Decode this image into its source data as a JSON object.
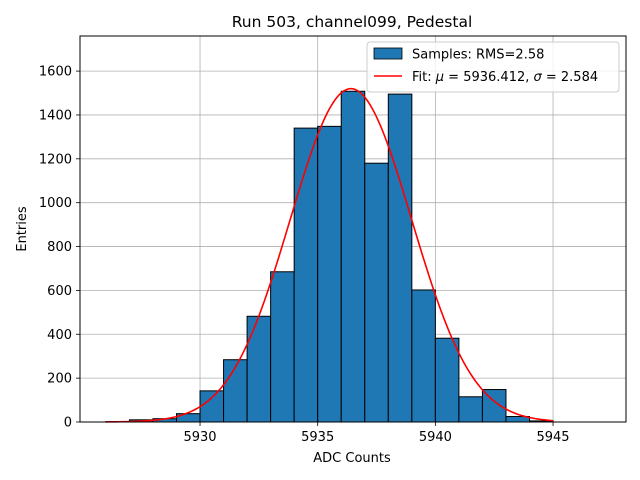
{
  "chart_data": {
    "type": "bar",
    "title": "Run 503, channel099, Pedestal",
    "xlabel": "ADC Counts",
    "ylabel": "Entries",
    "xlim": [
      5924.9,
      5948.1
    ],
    "ylim": [
      0,
      1760
    ],
    "xticks": [
      5930,
      5935,
      5940,
      5945
    ],
    "yticks": [
      0,
      200,
      400,
      600,
      800,
      1000,
      1200,
      1400,
      1600
    ],
    "grid": true,
    "legend_position": "top-right",
    "bin_width": 1,
    "histogram": {
      "name": "Samples: RMS=2.58",
      "color": "#1f77b4",
      "edgecolor": "#000000",
      "bin_left_edges": [
        5926,
        5927,
        5928,
        5929,
        5930,
        5931,
        5932,
        5933,
        5934,
        5935,
        5936,
        5937,
        5938,
        5939,
        5940,
        5941,
        5942,
        5943,
        5944,
        5945,
        5946
      ],
      "counts": [
        2,
        10,
        15,
        38,
        142,
        284,
        482,
        685,
        1340,
        1348,
        1508,
        1180,
        1495,
        602,
        382,
        115,
        148,
        25,
        5,
        0,
        0
      ]
    },
    "fit": {
      "name_prefix": "Fit: ",
      "name_mu": "μ",
      "name_mid": " = 5936.412, ",
      "name_sigma": "σ",
      "name_suffix": " = 2.584",
      "color": "#ff0000",
      "mu": 5936.412,
      "sigma": 2.584,
      "amplitude": 1520,
      "x_range": [
        5926,
        5945
      ]
    }
  }
}
